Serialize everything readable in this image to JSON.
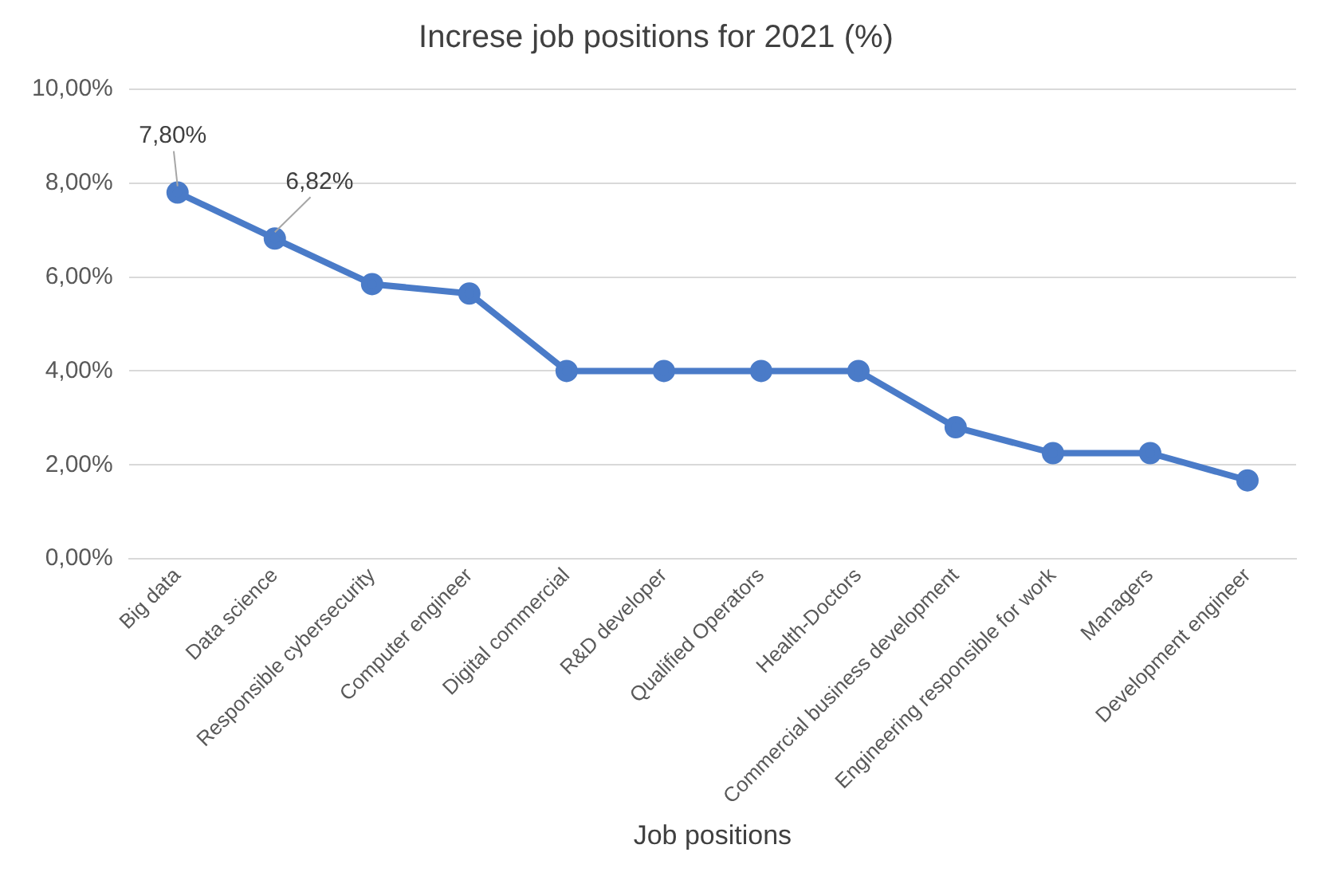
{
  "chart_data": {
    "type": "line",
    "title": "Increse job positions for 2021 (%)",
    "xlabel": "Job positions",
    "categories": [
      "Big data",
      "Data science",
      "Responsible cybersecurity",
      "Computer engineer",
      "Digital commercial",
      "R&D developer",
      "Qualified Operators",
      "Health-Doctors",
      "Commercial business development",
      "Engineering responsible for work",
      "Managers",
      "Development engineer"
    ],
    "series": [
      {
        "color": "#4a7bc8",
        "values": [
          7.8,
          6.82,
          5.85,
          5.65,
          4.0,
          4.0,
          4.0,
          4.0,
          2.8,
          2.25,
          2.25,
          1.67
        ],
        "value_labels": [
          "7,80%",
          "6,82%",
          null,
          null,
          null,
          null,
          null,
          null,
          null,
          null,
          null,
          null
        ]
      }
    ],
    "ylim": [
      0,
      10
    ],
    "yticks": [
      {
        "value": 0,
        "label": "0,00%"
      },
      {
        "value": 2,
        "label": "2,00%"
      },
      {
        "value": 4,
        "label": "4,00%"
      },
      {
        "value": 6,
        "label": "6,00%"
      },
      {
        "value": 8,
        "label": "8,00%"
      },
      {
        "value": 10,
        "label": "10,00%"
      }
    ],
    "grid": "y",
    "legend": false,
    "marker": "circle",
    "line_style": "solid"
  }
}
